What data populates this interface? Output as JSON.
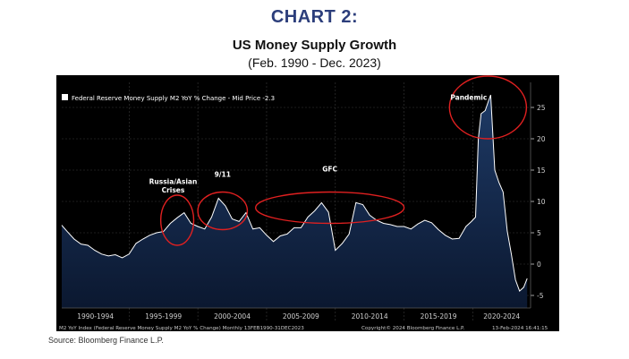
{
  "header": {
    "title": "CHART 2:",
    "subtitle": "US Money Supply Growth",
    "range": "(Feb. 1990 - Dec. 2023)"
  },
  "footer": {
    "source": "Source: Bloomberg Finance L.P."
  },
  "chart_data": {
    "type": "area",
    "legend": "Federal Reserve Money Supply M2 YoY % Change - Mid Price -2.3",
    "legend_position": "top-left",
    "footer_text": "M2 YoY Index (Federal Reserve Money Supply M2 YoY % Change)  Monthly 13FEB1990-31DEC2023",
    "copyright": "Copyright© 2024 Bloomberg Finance L.P.",
    "timestamp": "13-Feb-2024 16:41:15",
    "x_range": [
      1990.1,
      2024.2
    ],
    "ylim": [
      -7,
      29
    ],
    "y_ticks": [
      25,
      20,
      15,
      10,
      5,
      0,
      -5
    ],
    "y_tick_labels": [
      "25",
      "20",
      "15",
      "10",
      "5",
      "0",
      "-5"
    ],
    "grid": true,
    "x_period_labels": [
      {
        "label": "1990-1994",
        "start": 1990.1,
        "end": 1995.0
      },
      {
        "label": "1995-1999",
        "start": 1995.0,
        "end": 2000.0
      },
      {
        "label": "2000-2004",
        "start": 2000.0,
        "end": 2005.0
      },
      {
        "label": "2005-2009",
        "start": 2005.0,
        "end": 2010.0
      },
      {
        "label": "2010-2014",
        "start": 2010.0,
        "end": 2015.0
      },
      {
        "label": "2015-2019",
        "start": 2015.0,
        "end": 2020.0
      },
      {
        "label": "2020-2024",
        "start": 2020.0,
        "end": 2024.2
      }
    ],
    "series": [
      {
        "x": [
          1990.1,
          1990.5,
          1991.0,
          1991.5,
          1992.0,
          1992.5,
          1993.0,
          1993.5,
          1994.0,
          1994.5,
          1995.0,
          1995.5,
          1996.0,
          1996.5,
          1997.0,
          1997.5,
          1998.0,
          1998.5,
          1999.0,
          1999.5,
          2000.0,
          2000.5,
          2001.0,
          2001.5,
          2002.0,
          2002.5,
          2003.0,
          2003.5,
          2004.0,
          2004.5,
          2005.0,
          2005.5,
          2006.0,
          2006.5,
          2007.0,
          2007.5,
          2008.0,
          2008.5,
          2009.0,
          2009.5,
          2010.0,
          2010.5,
          2011.0,
          2011.5,
          2012.0,
          2012.5,
          2013.0,
          2013.5,
          2014.0,
          2014.5,
          2015.0,
          2015.5,
          2016.0,
          2016.5,
          2017.0,
          2017.5,
          2018.0,
          2018.5,
          2019.0,
          2019.5,
          2019.9,
          2020.2,
          2020.4,
          2020.6,
          2020.9,
          2021.1,
          2021.3,
          2021.6,
          2021.9,
          2022.2,
          2022.5,
          2022.8,
          2023.1,
          2023.4,
          2023.7,
          2023.95
        ],
        "values": [
          6.2,
          5.2,
          4.0,
          3.2,
          3.0,
          2.2,
          1.6,
          1.3,
          1.5,
          1.0,
          1.6,
          3.3,
          4.0,
          4.6,
          5.0,
          5.2,
          6.5,
          7.4,
          8.2,
          6.5,
          6.0,
          5.6,
          7.5,
          10.5,
          9.3,
          7.2,
          6.8,
          8.2,
          5.6,
          5.8,
          4.6,
          3.6,
          4.5,
          4.8,
          5.8,
          5.8,
          7.5,
          8.5,
          9.8,
          8.3,
          2.2,
          3.3,
          4.8,
          9.8,
          9.5,
          7.8,
          7.0,
          6.5,
          6.3,
          6.0,
          6.0,
          5.6,
          6.4,
          7.0,
          6.6,
          5.5,
          4.6,
          4.0,
          4.1,
          6.0,
          6.8,
          7.5,
          20.0,
          24.0,
          24.5,
          25.8,
          27.0,
          15.0,
          13.0,
          11.5,
          5.3,
          1.6,
          -2.5,
          -4.3,
          -3.7,
          -2.3
        ]
      }
    ],
    "annotations": [
      {
        "text": "Russia/Asian",
        "x": 1998.2,
        "y": 12.8
      },
      {
        "text": "Crises",
        "x": 1998.2,
        "y": 11.4
      },
      {
        "text": "9/11",
        "x": 2001.8,
        "y": 13.9
      },
      {
        "text": "GFC",
        "x": 2009.6,
        "y": 14.8
      },
      {
        "text": "Pandemic",
        "x": 2019.7,
        "y": 26.2
      }
    ],
    "highlight_ellipses": [
      {
        "cx": 1998.5,
        "cy": 7.0,
        "rx": 1.2,
        "ry": 4.0
      },
      {
        "cx": 2001.8,
        "cy": 8.5,
        "rx": 1.8,
        "ry": 3.0
      },
      {
        "cx": 2009.6,
        "cy": 9.0,
        "rx": 5.4,
        "ry": 2.5
      },
      {
        "cx": 2021.1,
        "cy": 25.0,
        "rx": 2.8,
        "ry": 5.0
      }
    ],
    "colors": {
      "background": "#000000",
      "area_top": "#1e3a66",
      "area_bottom": "#0b1830",
      "line": "#ffffff",
      "grid": "#3a3a3a",
      "highlight": "#e02020",
      "text": "#ffffff",
      "axis_text": "#cfcfcf"
    }
  }
}
